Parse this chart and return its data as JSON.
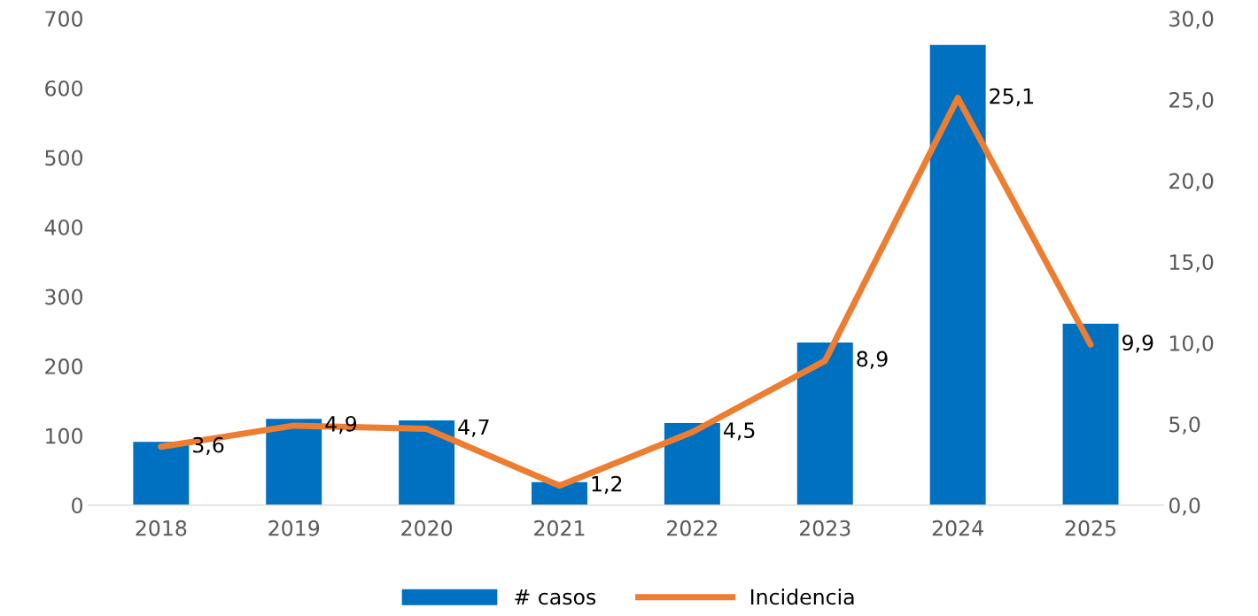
{
  "chart_data": {
    "type": "bar",
    "categories": [
      "2018",
      "2019",
      "2020",
      "2021",
      "2022",
      "2023",
      "2024",
      "2025"
    ],
    "series": [
      {
        "name": "# casos",
        "color": "#0070c0",
        "values": [
          91,
          124,
          122,
          33,
          118,
          234,
          662,
          261
        ]
      },
      {
        "name": "Incidencia",
        "type": "line",
        "axis": "y2",
        "color": "#ed7d31",
        "values": [
          3.6,
          4.9,
          4.7,
          1.2,
          4.5,
          8.9,
          25.1,
          9.9
        ],
        "value_labels": [
          "3,6",
          "4,9",
          "4,7",
          "1,2",
          "4,5",
          "8,9",
          "25,1",
          "9,9"
        ]
      }
    ],
    "ylim": [
      0,
      700
    ],
    "yticks": [
      0,
      100,
      200,
      300,
      400,
      500,
      600,
      700
    ],
    "y2lim": [
      0,
      30
    ],
    "y2ticks": [
      {
        "value": 0,
        "label": "0,0"
      },
      {
        "value": 5,
        "label": "5,0"
      },
      {
        "value": 10,
        "label": "10,0"
      },
      {
        "value": 15,
        "label": "15,0"
      },
      {
        "value": 20,
        "label": "20,0"
      },
      {
        "value": 25,
        "label": "25,0"
      },
      {
        "value": 30,
        "label": "30,0"
      }
    ],
    "grid": false,
    "legend": "bottom",
    "marker": "none",
    "line_style": "solid"
  }
}
